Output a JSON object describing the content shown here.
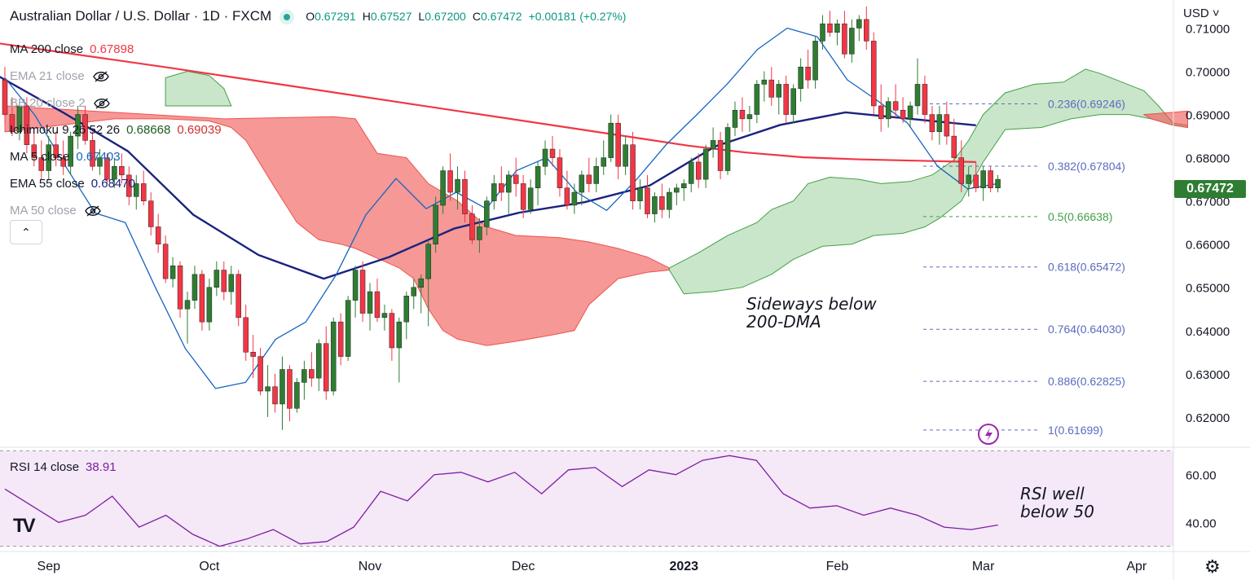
{
  "header": {
    "title": "Australian Dollar / U.S. Dollar · 1D · FXCM",
    "open_label": "O",
    "open": "0.67291",
    "high_label": "H",
    "high": "0.67527",
    "low_label": "L",
    "low": "0.67200",
    "close_label": "C",
    "close": "0.67472",
    "change": "+0.00181 (+0.27%)"
  },
  "legend": [
    {
      "name": "MA 200 close",
      "value": "0.67898",
      "color": "#f23645",
      "visible": true
    },
    {
      "name": "EMA 21 close",
      "value": "",
      "visible": false,
      "icon": "eye-off-icon"
    },
    {
      "name": "BB 20 close 2",
      "value": "",
      "visible": false,
      "icon": "eye-off-icon"
    },
    {
      "name": "Ichimoku 9 26 52 26",
      "value": "0.68668",
      "value2": "0.69039",
      "color": "#1b5e20",
      "color2": "#d32f2f",
      "visible": true
    },
    {
      "name": "MA 5 close",
      "value": "0.67403",
      "color": "#1565c0",
      "visible": true
    },
    {
      "name": "EMA 55 close",
      "value": "0.68470",
      "color": "#1a237e",
      "visible": true
    },
    {
      "name": "MA 50 close",
      "value": "",
      "visible": false,
      "icon": "eye-off-icon"
    }
  ],
  "collapse_icon": "chevron-up-icon",
  "currency": "USD",
  "last_price": "0.67472",
  "rsi": {
    "name": "RSI 14 close",
    "value": "38.91",
    "ticks": [
      "60.00",
      "40.00"
    ]
  },
  "annotations": {
    "sideways": [
      "Sideways below",
      "200-DMA"
    ],
    "rsi": [
      "RSI well",
      "below 50"
    ]
  },
  "fib_labels": [
    {
      "label": "0.236(0.69246)",
      "price": 0.69246
    },
    {
      "label": "0.382(0.67804)",
      "price": 0.67804
    },
    {
      "label": "0.5(0.66638)",
      "price": 0.66638
    },
    {
      "label": "0.618(0.65472)",
      "price": 0.65472
    },
    {
      "label": "0.764(0.64030)",
      "price": 0.6403
    },
    {
      "label": "0.886(0.62825)",
      "price": 0.62825
    },
    {
      "label": "1(0.61699)",
      "price": 0.61699
    }
  ],
  "colors": {
    "up": "#2e7d32",
    "down": "#f23645",
    "ma200": "#f23645",
    "ema55": "#1a237e",
    "ma5": "#1565c0",
    "rsi": "#7b1fa2",
    "cloud_green": "#a5d6a7",
    "cloud_red": "#ef5350",
    "fib": "#5c6bc0"
  },
  "chart_data": {
    "type": "candlestick",
    "y_axis_ticks": [
      "0.71000",
      "0.70000",
      "0.69000",
      "0.68000",
      "0.67000",
      "0.66000",
      "0.65000",
      "0.64000",
      "0.63000",
      "0.62000"
    ],
    "ylim": [
      0.613,
      0.7165
    ],
    "x_labels": [
      "Sep",
      "Oct",
      "Nov",
      "Dec",
      "2023",
      "Feb",
      "Mar",
      "Apr"
    ],
    "x_label_index": [
      6,
      28,
      50,
      71,
      93,
      114,
      134,
      155
    ],
    "candles": [
      [
        0.698,
        0.701,
        0.688,
        0.69
      ],
      [
        0.69,
        0.694,
        0.685,
        0.686
      ],
      [
        0.686,
        0.693,
        0.684,
        0.692
      ],
      [
        0.692,
        0.694,
        0.681,
        0.683
      ],
      [
        0.683,
        0.686,
        0.678,
        0.68
      ],
      [
        0.68,
        0.684,
        0.675,
        0.677
      ],
      [
        0.677,
        0.685,
        0.675,
        0.683
      ],
      [
        0.683,
        0.686,
        0.678,
        0.68
      ],
      [
        0.68,
        0.684,
        0.676,
        0.678
      ],
      [
        0.678,
        0.686,
        0.676,
        0.685
      ],
      [
        0.685,
        0.692,
        0.682,
        0.69
      ],
      [
        0.69,
        0.692,
        0.683,
        0.684
      ],
      [
        0.684,
        0.686,
        0.677,
        0.678
      ],
      [
        0.678,
        0.682,
        0.676,
        0.68
      ],
      [
        0.68,
        0.681,
        0.674,
        0.675
      ],
      [
        0.675,
        0.68,
        0.673,
        0.678
      ],
      [
        0.678,
        0.681,
        0.674,
        0.676
      ],
      [
        0.676,
        0.678,
        0.669,
        0.671
      ],
      [
        0.671,
        0.676,
        0.668,
        0.674
      ],
      [
        0.674,
        0.677,
        0.669,
        0.67
      ],
      [
        0.67,
        0.672,
        0.662,
        0.664
      ],
      [
        0.664,
        0.667,
        0.658,
        0.66
      ],
      [
        0.66,
        0.662,
        0.651,
        0.652
      ],
      [
        0.652,
        0.657,
        0.65,
        0.655
      ],
      [
        0.655,
        0.656,
        0.643,
        0.645
      ],
      [
        0.645,
        0.649,
        0.637,
        0.647
      ],
      [
        0.647,
        0.655,
        0.645,
        0.653
      ],
      [
        0.653,
        0.654,
        0.64,
        0.642
      ],
      [
        0.642,
        0.652,
        0.64,
        0.65
      ],
      [
        0.65,
        0.656,
        0.648,
        0.654
      ],
      [
        0.654,
        0.656,
        0.647,
        0.649
      ],
      [
        0.649,
        0.655,
        0.646,
        0.653
      ],
      [
        0.653,
        0.654,
        0.641,
        0.643
      ],
      [
        0.643,
        0.646,
        0.633,
        0.635
      ],
      [
        0.635,
        0.639,
        0.629,
        0.634
      ],
      [
        0.634,
        0.636,
        0.625,
        0.626
      ],
      [
        0.626,
        0.632,
        0.62,
        0.627
      ],
      [
        0.627,
        0.63,
        0.621,
        0.623
      ],
      [
        0.623,
        0.634,
        0.617,
        0.631
      ],
      [
        0.631,
        0.632,
        0.619,
        0.622
      ],
      [
        0.622,
        0.629,
        0.621,
        0.628
      ],
      [
        0.628,
        0.633,
        0.624,
        0.631
      ],
      [
        0.631,
        0.635,
        0.627,
        0.629
      ],
      [
        0.629,
        0.638,
        0.626,
        0.637
      ],
      [
        0.637,
        0.641,
        0.624,
        0.626
      ],
      [
        0.626,
        0.643,
        0.625,
        0.642
      ],
      [
        0.642,
        0.644,
        0.632,
        0.634
      ],
      [
        0.634,
        0.648,
        0.633,
        0.647
      ],
      [
        0.647,
        0.655,
        0.643,
        0.654
      ],
      [
        0.654,
        0.656,
        0.642,
        0.644
      ],
      [
        0.644,
        0.651,
        0.64,
        0.649
      ],
      [
        0.649,
        0.652,
        0.642,
        0.643
      ],
      [
        0.643,
        0.646,
        0.64,
        0.644
      ],
      [
        0.644,
        0.645,
        0.633,
        0.636
      ],
      [
        0.636,
        0.643,
        0.628,
        0.642
      ],
      [
        0.642,
        0.649,
        0.638,
        0.648
      ],
      [
        0.648,
        0.652,
        0.645,
        0.65
      ],
      [
        0.65,
        0.653,
        0.644,
        0.652
      ],
      [
        0.652,
        0.661,
        0.641,
        0.66
      ],
      [
        0.66,
        0.671,
        0.658,
        0.669
      ],
      [
        0.669,
        0.678,
        0.667,
        0.677
      ],
      [
        0.677,
        0.681,
        0.67,
        0.672
      ],
      [
        0.672,
        0.678,
        0.668,
        0.675
      ],
      [
        0.675,
        0.677,
        0.665,
        0.667
      ],
      [
        0.667,
        0.669,
        0.66,
        0.661
      ],
      [
        0.661,
        0.666,
        0.658,
        0.664
      ],
      [
        0.664,
        0.671,
        0.662,
        0.67
      ],
      [
        0.67,
        0.676,
        0.668,
        0.674
      ],
      [
        0.674,
        0.678,
        0.67,
        0.672
      ],
      [
        0.672,
        0.677,
        0.667,
        0.676
      ],
      [
        0.676,
        0.68,
        0.671,
        0.674
      ],
      [
        0.674,
        0.676,
        0.666,
        0.668
      ],
      [
        0.668,
        0.675,
        0.667,
        0.673
      ],
      [
        0.673,
        0.679,
        0.669,
        0.678
      ],
      [
        0.678,
        0.684,
        0.676,
        0.682
      ],
      [
        0.682,
        0.685,
        0.678,
        0.68
      ],
      [
        0.68,
        0.682,
        0.671,
        0.673
      ],
      [
        0.673,
        0.677,
        0.668,
        0.669
      ],
      [
        0.669,
        0.674,
        0.667,
        0.672
      ],
      [
        0.672,
        0.677,
        0.669,
        0.676
      ],
      [
        0.676,
        0.68,
        0.672,
        0.674
      ],
      [
        0.674,
        0.68,
        0.672,
        0.678
      ],
      [
        0.678,
        0.684,
        0.676,
        0.68
      ],
      [
        0.68,
        0.69,
        0.679,
        0.688
      ],
      [
        0.688,
        0.69,
        0.675,
        0.678
      ],
      [
        0.678,
        0.685,
        0.676,
        0.683
      ],
      [
        0.683,
        0.686,
        0.668,
        0.67
      ],
      [
        0.67,
        0.675,
        0.668,
        0.673
      ],
      [
        0.673,
        0.676,
        0.666,
        0.667
      ],
      [
        0.667,
        0.672,
        0.665,
        0.671
      ],
      [
        0.671,
        0.674,
        0.666,
        0.668
      ],
      [
        0.668,
        0.673,
        0.666,
        0.672
      ],
      [
        0.672,
        0.674,
        0.669,
        0.673
      ],
      [
        0.673,
        0.675,
        0.67,
        0.674
      ],
      [
        0.674,
        0.68,
        0.672,
        0.679
      ],
      [
        0.679,
        0.681,
        0.673,
        0.675
      ],
      [
        0.675,
        0.683,
        0.673,
        0.682
      ],
      [
        0.682,
        0.687,
        0.68,
        0.684
      ],
      [
        0.684,
        0.686,
        0.675,
        0.677
      ],
      [
        0.677,
        0.688,
        0.676,
        0.687
      ],
      [
        0.687,
        0.693,
        0.685,
        0.691
      ],
      [
        0.691,
        0.694,
        0.686,
        0.689
      ],
      [
        0.689,
        0.692,
        0.686,
        0.69
      ],
      [
        0.69,
        0.698,
        0.688,
        0.697
      ],
      [
        0.697,
        0.7,
        0.693,
        0.698
      ],
      [
        0.698,
        0.701,
        0.692,
        0.694
      ],
      [
        0.694,
        0.698,
        0.69,
        0.697
      ],
      [
        0.697,
        0.699,
        0.688,
        0.69
      ],
      [
        0.69,
        0.697,
        0.688,
        0.696
      ],
      [
        0.696,
        0.703,
        0.693,
        0.701
      ],
      [
        0.701,
        0.705,
        0.696,
        0.698
      ],
      [
        0.698,
        0.708,
        0.696,
        0.707
      ],
      [
        0.707,
        0.713,
        0.705,
        0.711
      ],
      [
        0.711,
        0.714,
        0.708,
        0.709
      ],
      [
        0.709,
        0.712,
        0.706,
        0.711
      ],
      [
        0.711,
        0.714,
        0.703,
        0.704
      ],
      [
        0.704,
        0.712,
        0.702,
        0.71
      ],
      [
        0.71,
        0.713,
        0.707,
        0.712
      ],
      [
        0.712,
        0.715,
        0.705,
        0.707
      ],
      [
        0.707,
        0.709,
        0.69,
        0.692
      ],
      [
        0.692,
        0.697,
        0.686,
        0.689
      ],
      [
        0.689,
        0.694,
        0.687,
        0.693
      ],
      [
        0.693,
        0.697,
        0.689,
        0.691
      ],
      [
        0.691,
        0.694,
        0.688,
        0.689
      ],
      [
        0.689,
        0.693,
        0.687,
        0.692
      ],
      [
        0.692,
        0.703,
        0.69,
        0.697
      ],
      [
        0.697,
        0.699,
        0.688,
        0.69
      ],
      [
        0.69,
        0.692,
        0.684,
        0.686
      ],
      [
        0.686,
        0.692,
        0.683,
        0.69
      ],
      [
        0.69,
        0.693,
        0.683,
        0.685
      ],
      [
        0.685,
        0.689,
        0.679,
        0.68
      ],
      [
        0.68,
        0.684,
        0.672,
        0.674
      ],
      [
        0.674,
        0.678,
        0.671,
        0.676
      ],
      [
        0.676,
        0.679,
        0.672,
        0.673
      ],
      [
        0.673,
        0.678,
        0.67,
        0.677
      ],
      [
        0.677,
        0.678,
        0.672,
        0.673
      ],
      [
        0.673,
        0.676,
        0.672,
        0.675
      ]
    ],
    "series": [
      {
        "name": "MA 200 close",
        "values": [
          0.7065,
          0.7046,
          0.7027,
          0.7008,
          0.6988,
          0.6968,
          0.6948,
          0.6928,
          0.6908,
          0.6888,
          0.6868,
          0.6848,
          0.6828,
          0.6812,
          0.6801,
          0.6796,
          0.6793,
          0.679
        ]
      },
      {
        "name": "EMA 55 close",
        "values": [
          0.699,
          0.6905,
          0.6815,
          0.6668,
          0.6575,
          0.652,
          0.657,
          0.6636,
          0.6673,
          0.6697,
          0.6736,
          0.6826,
          0.6876,
          0.6905,
          0.689,
          0.6875
        ]
      },
      {
        "name": "MA 5 close",
        "values": [
          0.6985,
          0.6898,
          0.6782,
          0.6672,
          0.665,
          0.65,
          0.6358,
          0.6266,
          0.628,
          0.638,
          0.642,
          0.6528,
          0.6668,
          0.6752,
          0.6682,
          0.672,
          0.6682,
          0.677,
          0.68,
          0.672,
          0.6678,
          0.675,
          0.6832,
          0.69,
          0.697,
          0.705,
          0.71,
          0.708,
          0.698,
          0.6932,
          0.688,
          0.678,
          0.6728,
          0.674
        ]
      },
      {
        "name": "RSI 14 close",
        "values": [
          54,
          47,
          40,
          43,
          51,
          38,
          43,
          35,
          30,
          33,
          37,
          31,
          32,
          38,
          53,
          49,
          60,
          61,
          57,
          61,
          52,
          62,
          63,
          55,
          62,
          60,
          66,
          68,
          66,
          52,
          46,
          47,
          43,
          46,
          43,
          38,
          37,
          38.91
        ]
      }
    ]
  }
}
